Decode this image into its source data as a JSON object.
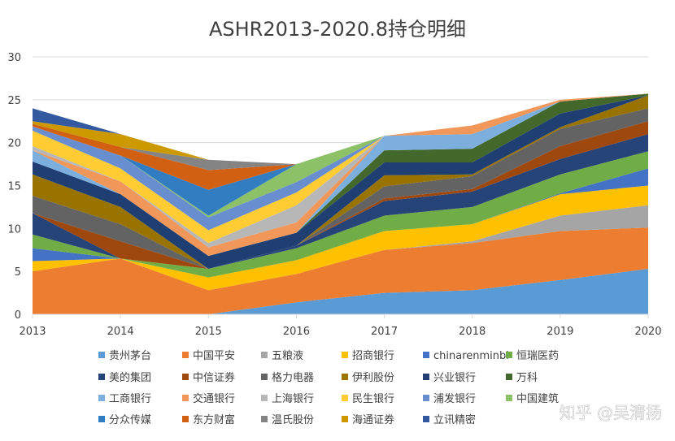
{
  "chart_data": {
    "type": "area",
    "stacked": true,
    "title": "ASHR2013-2020.8持仓明细",
    "xlabel": "",
    "ylabel": "",
    "ylim": [
      0,
      30
    ],
    "yticks": [
      0,
      5,
      10,
      15,
      20,
      25,
      30
    ],
    "grid": true,
    "legend_position": "bottom",
    "categories": [
      "2013",
      "2014",
      "2015",
      "2016",
      "2017",
      "2018",
      "2019",
      "2020"
    ],
    "series": [
      {
        "name": "贵州茅台",
        "color": "#5B9BD5",
        "values": [
          0,
          0,
          0,
          1.4,
          2.5,
          2.8,
          4,
          5.3
        ]
      },
      {
        "name": "中国平安",
        "color": "#ED7D31",
        "values": [
          5,
          6.5,
          2.8,
          3.3,
          5.0,
          5.5,
          5.7,
          4.8
        ]
      },
      {
        "name": "五粮液",
        "color": "#A5A5A5",
        "values": [
          0,
          0,
          0,
          0,
          0,
          0.2,
          1.8,
          2.6
        ]
      },
      {
        "name": "招商银行",
        "color": "#FFC000",
        "values": [
          1.2,
          0,
          1.5,
          1.6,
          2.2,
          2,
          2.5,
          2.3
        ]
      },
      {
        "name": "chinarenminbi",
        "color": "#4472C4",
        "values": [
          1.5,
          0,
          0,
          0,
          0,
          0,
          0.1,
          2
        ]
      },
      {
        "name": "恒瑞医药",
        "color": "#70AD47",
        "values": [
          1.6,
          0,
          1,
          1.4,
          1.8,
          2,
          2.2,
          2
        ]
      },
      {
        "name": "美的集团",
        "color": "#264478",
        "values": [
          2.5,
          0,
          0,
          0.3,
          1.7,
          1.8,
          1.8,
          2
        ]
      },
      {
        "name": "中信证券",
        "color": "#9E480E",
        "values": [
          0,
          2,
          0,
          0,
          0.3,
          0.3,
          1.5,
          1.5
        ]
      },
      {
        "name": "格力电器",
        "color": "#636363",
        "values": [
          2,
          2,
          0,
          0,
          1.4,
          1.5,
          2,
          1.5
        ]
      },
      {
        "name": "伊利股份",
        "color": "#997300",
        "values": [
          2.5,
          2,
          0,
          0,
          1.3,
          0.2,
          0.2,
          1.5
        ]
      },
      {
        "name": "兴业银行",
        "color": "#1F3F73",
        "values": [
          1.5,
          1.5,
          1.5,
          1.5,
          1.5,
          1.4,
          1.6,
          0
        ]
      },
      {
        "name": "万科",
        "color": "#43682B",
        "values": [
          0,
          0,
          0,
          0,
          1.4,
          1.6,
          1.4,
          0.2
        ]
      },
      {
        "name": "工商银行",
        "color": "#7CAFDD",
        "values": [
          1.3,
          0,
          0,
          0,
          1.7,
          1.7,
          0,
          0
        ]
      },
      {
        "name": "交通银行",
        "color": "#F1975A",
        "values": [
          0,
          1.5,
          1,
          1.2,
          0,
          1.0,
          0.2,
          0
        ]
      },
      {
        "name": "上海银行",
        "color": "#B7B7B7",
        "values": [
          0.5,
          0,
          0.5,
          2,
          0,
          0,
          0,
          0
        ]
      },
      {
        "name": "民生银行",
        "color": "#FFCD33",
        "values": [
          1.8,
          1.5,
          1.5,
          1.5,
          0,
          0,
          0,
          0
        ]
      },
      {
        "name": "浦发银行",
        "color": "#698ED0",
        "values": [
          0.5,
          1.5,
          1.5,
          1.2,
          0,
          0,
          0,
          0
        ]
      },
      {
        "name": "中国建筑",
        "color": "#8CC168",
        "values": [
          0,
          0,
          0.2,
          2.1,
          0,
          0,
          0,
          0
        ]
      },
      {
        "name": "分众传媒",
        "color": "#327DC2",
        "values": [
          0,
          0,
          3,
          0,
          0,
          0,
          0,
          0
        ]
      },
      {
        "name": "东方财富",
        "color": "#D26012",
        "values": [
          0.3,
          1,
          2.3,
          0,
          0,
          0,
          0,
          0
        ]
      },
      {
        "name": "温氏股份",
        "color": "#848484",
        "values": [
          0,
          0,
          1.2,
          0,
          0,
          0,
          0,
          0
        ]
      },
      {
        "name": "海通证券",
        "color": "#CC9A00",
        "values": [
          0.3,
          1.5,
          0,
          0,
          0,
          0,
          0,
          0
        ]
      },
      {
        "name": "立讯精密",
        "color": "#335AA1",
        "values": [
          1.5,
          0,
          0,
          0,
          0,
          0,
          0,
          0
        ]
      }
    ]
  },
  "watermark": "知乎 @吴清扬"
}
